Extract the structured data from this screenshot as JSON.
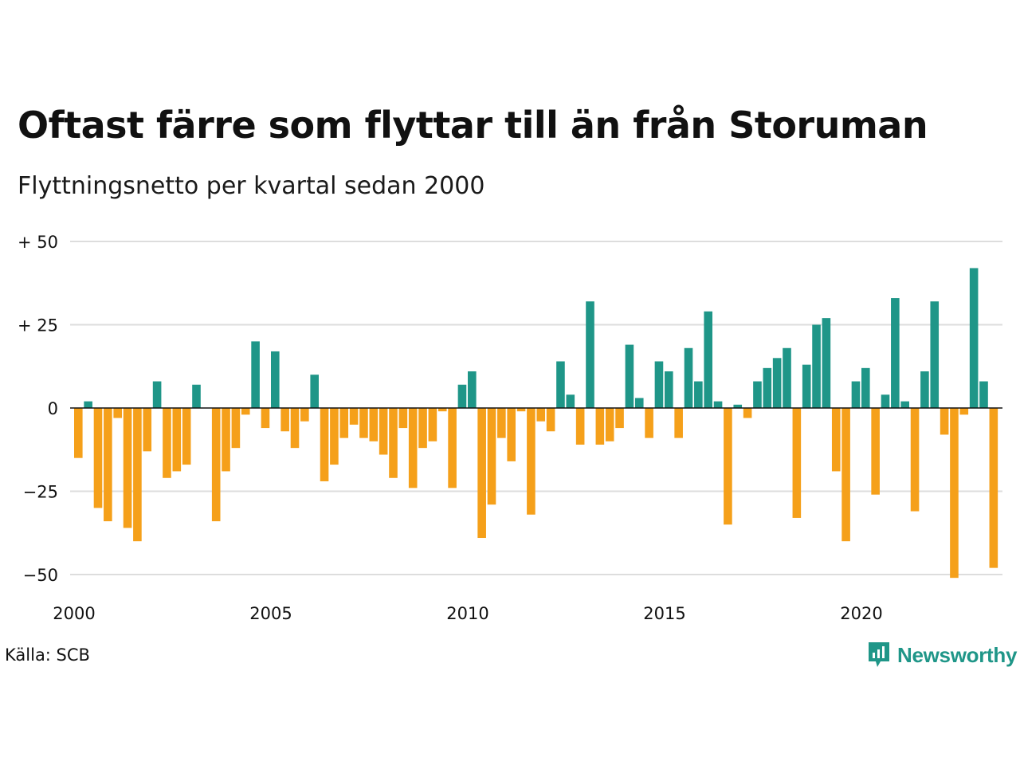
{
  "title": "Oftast färre som flyttar till än från Storuman",
  "subtitle": "Flyttningsnetto per kvartal sedan 2000",
  "source": "Källa: SCB",
  "brand": {
    "name": "Newsworthy",
    "icon": "newsworthy-chart-bubble-icon",
    "color": "#1f9688"
  },
  "colors": {
    "positive": "#1f9688",
    "negative": "#f5a01a",
    "grid": "#dddddd",
    "baseline": "#111111"
  },
  "chart_data": {
    "type": "bar",
    "title": "Oftast färre som flyttar till än från Storuman",
    "subtitle": "Flyttningsnetto per kvartal sedan 2000",
    "xlabel": "",
    "ylabel": "",
    "ylim": [
      -50,
      50
    ],
    "grid": true,
    "y_ticks": [
      {
        "value": 50,
        "label": "+ 50"
      },
      {
        "value": 25,
        "label": "+ 25"
      },
      {
        "value": 0,
        "label": "0"
      },
      {
        "value": -25,
        "label": "−25"
      },
      {
        "value": -50,
        "label": "−50"
      }
    ],
    "x_ticks": [
      "2000",
      "2005",
      "2010",
      "2015",
      "2020"
    ],
    "start_period": "2000 Q1",
    "frequency": "quarterly",
    "values": [
      -15,
      2,
      -30,
      -34,
      -3,
      -36,
      -40,
      -13,
      8,
      -21,
      -19,
      -17,
      7,
      0,
      -34,
      -19,
      -12,
      -2,
      20,
      -6,
      17,
      -7,
      -12,
      -4,
      10,
      -22,
      -17,
      -9,
      -5,
      -9,
      -10,
      -14,
      -21,
      -6,
      -24,
      -12,
      -10,
      -1,
      -24,
      7,
      11,
      -39,
      -29,
      -9,
      -16,
      -1,
      -32,
      -4,
      -7,
      14,
      4,
      -11,
      32,
      -11,
      -10,
      -6,
      19,
      3,
      -9,
      14,
      11,
      -9,
      18,
      8,
      29,
      2,
      -35,
      1,
      -3,
      8,
      12,
      15,
      18,
      -33,
      13,
      25,
      27,
      -19,
      -40,
      8,
      12,
      -26,
      4,
      33,
      2,
      -31,
      11,
      32,
      -8,
      -51,
      -2,
      42,
      8,
      -48
    ]
  }
}
